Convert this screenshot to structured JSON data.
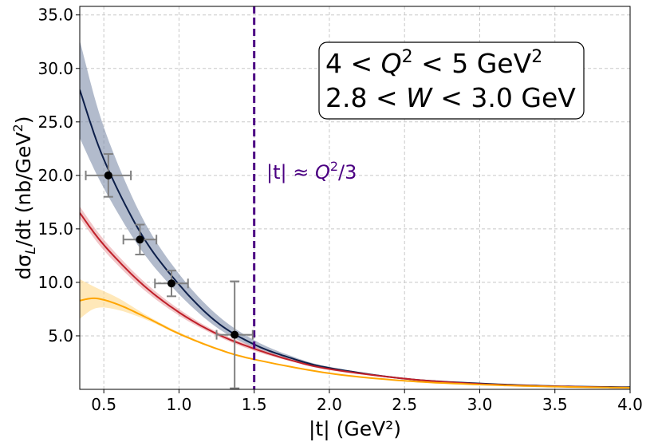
{
  "chart_data": {
    "type": "line",
    "xlabel": "|t| (GeV²)",
    "ylabel": "dσ_L/dt (nb/GeV²)",
    "xlim": [
      0.34,
      4.0
    ],
    "ylim": [
      0.0,
      35.8
    ],
    "xticks": [
      "0.5",
      "1.0",
      "1.5",
      "2.0",
      "2.5",
      "3.0",
      "3.5",
      "4.0"
    ],
    "yticks": [
      "5.0",
      "10.0",
      "15.0",
      "20.0",
      "25.0",
      "30.0",
      "35.0"
    ],
    "grid": true,
    "kinematics_box": {
      "line1": {
        "pre": "4 < ",
        "var": "Q",
        "sup": "2",
        "post": " < 5 GeV",
        "sup2": "2"
      },
      "line2": {
        "pre": "2.8 < ",
        "var": "W",
        "post": " < 3.0 GeV"
      }
    },
    "cutoff": {
      "x": 1.5,
      "color": "#4b0082",
      "label": {
        "abs": "|t|",
        "approx": " ≈ ",
        "var": "Q",
        "sup": "2",
        "post": "/3"
      }
    },
    "series": [
      {
        "name": "navy band",
        "color": "#0d1f4a",
        "band_color": "#7f8daa",
        "x": [
          0.34,
          0.5,
          0.75,
          1.0,
          1.25,
          1.5,
          1.75,
          2.0,
          2.5,
          3.0,
          3.5,
          4.0
        ],
        "y": [
          28.0,
          21.5,
          14.5,
          9.8,
          6.3,
          4.2,
          2.9,
          2.0,
          1.0,
          0.55,
          0.3,
          0.2
        ],
        "lower": [
          23.5,
          18.8,
          13.0,
          8.9,
          5.8,
          3.9,
          2.7,
          1.9,
          0.95,
          0.52,
          0.28,
          0.18
        ],
        "upper": [
          32.6,
          24.5,
          16.2,
          10.8,
          7.0,
          4.6,
          3.1,
          2.1,
          1.05,
          0.58,
          0.32,
          0.22
        ]
      },
      {
        "name": "red band",
        "color": "#c0202a",
        "band_color": "#e8a0a4",
        "x": [
          0.34,
          0.5,
          0.75,
          1.0,
          1.25,
          1.5,
          1.75,
          2.0,
          2.5,
          3.0,
          3.5,
          4.0
        ],
        "y": [
          16.5,
          13.5,
          9.9,
          7.2,
          5.2,
          3.8,
          2.7,
          1.9,
          1.0,
          0.5,
          0.28,
          0.15
        ],
        "lower": [
          16.0,
          13.0,
          9.5,
          6.9,
          5.0,
          3.6,
          2.6,
          1.8,
          0.95,
          0.48,
          0.26,
          0.14
        ],
        "upper": [
          17.1,
          14.0,
          10.3,
          7.5,
          5.4,
          4.0,
          2.8,
          2.0,
          1.05,
          0.53,
          0.3,
          0.17
        ]
      },
      {
        "name": "orange band",
        "color": "#ffa500",
        "band_color": "#ffd98a",
        "x": [
          0.34,
          0.45,
          0.6,
          0.8,
          1.0,
          1.25,
          1.5,
          2.0,
          2.5,
          3.0,
          3.5,
          4.0
        ],
        "y": [
          8.3,
          8.5,
          7.9,
          6.6,
          5.2,
          3.8,
          2.8,
          1.5,
          0.8,
          0.45,
          0.25,
          0.15
        ],
        "lower": [
          6.6,
          7.6,
          7.4,
          6.4,
          5.1,
          3.75,
          2.75,
          1.45,
          0.78,
          0.44,
          0.24,
          0.14
        ],
        "upper": [
          10.3,
          9.5,
          8.5,
          6.8,
          5.35,
          3.9,
          2.85,
          1.55,
          0.82,
          0.46,
          0.26,
          0.16
        ]
      }
    ],
    "data_points": {
      "color": "#000000",
      "errbar_color": "#808080",
      "x": [
        0.53,
        0.74,
        0.95,
        1.37
      ],
      "y": [
        20.0,
        14.0,
        9.9,
        5.1
      ],
      "x_err": [
        0.15,
        0.11,
        0.11,
        0.12
      ],
      "y_err": [
        2.0,
        1.4,
        1.2,
        5.0
      ]
    }
  }
}
